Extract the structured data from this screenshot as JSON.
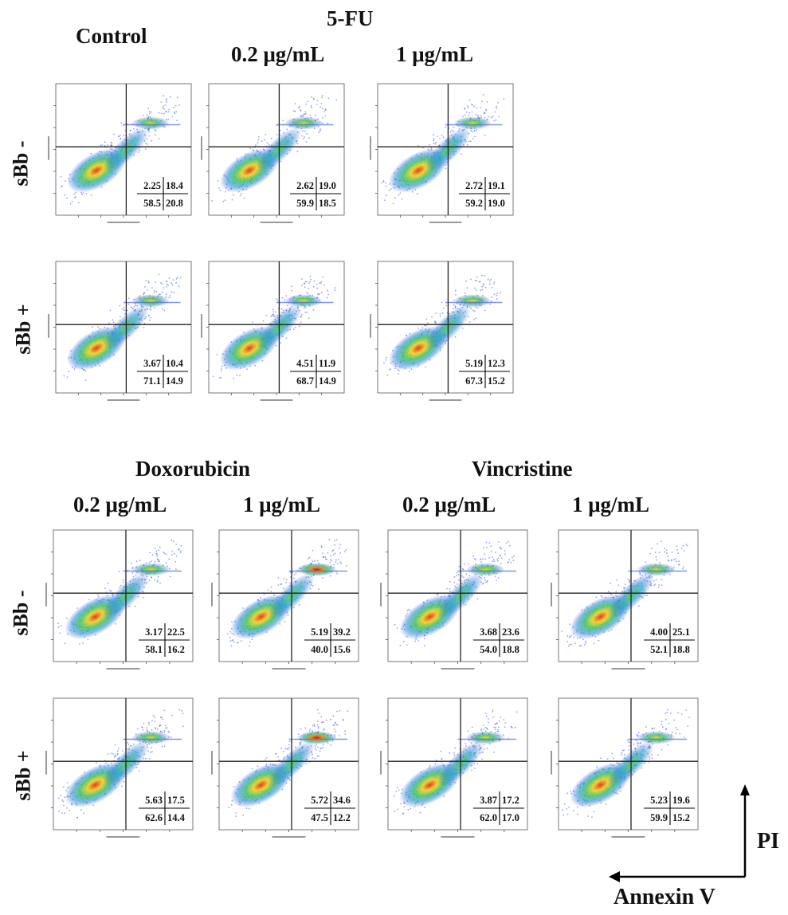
{
  "headers": {
    "top": {
      "control": "Control",
      "fu": "5-FU",
      "fu_dose1": "0.2 μg/mL",
      "fu_dose2": "1 μg/mL"
    },
    "bottom": {
      "dox": "Doxorubicin",
      "vin": "Vincristine",
      "dox_dose1": "0.2 μg/mL",
      "dox_dose2": "1 μg/mL",
      "vin_dose1": "0.2 μg/mL",
      "vin_dose2": "1 μg/mL"
    }
  },
  "row_labels": {
    "minus": "sBb -",
    "plus": "sBb +"
  },
  "axis_arrows": {
    "y": "PI",
    "x": "Annexin V"
  },
  "chart_data": [
    {
      "type": "scatter",
      "panel": "Control, sBb -",
      "quadrants": {
        "Q1": "2.25",
        "Q2": "18.4",
        "Q3": "58.5",
        "Q4": "20.8"
      }
    },
    {
      "type": "scatter",
      "panel": "5-FU 0.2 μg/mL, sBb -",
      "quadrants": {
        "Q1": "2.62",
        "Q2": "19.0",
        "Q3": "59.9",
        "Q4": "18.5"
      }
    },
    {
      "type": "scatter",
      "panel": "5-FU 1 μg/mL, sBb -",
      "quadrants": {
        "Q1": "2.72",
        "Q2": "19.1",
        "Q3": "59.2",
        "Q4": "19.0"
      }
    },
    {
      "type": "scatter",
      "panel": "Control, sBb +",
      "quadrants": {
        "Q1": "3.67",
        "Q2": "10.4",
        "Q3": "71.1",
        "Q4": "14.9"
      }
    },
    {
      "type": "scatter",
      "panel": "5-FU 0.2 μg/mL, sBb +",
      "quadrants": {
        "Q1": "4.51",
        "Q2": "11.9",
        "Q3": "68.7",
        "Q4": "14.9"
      }
    },
    {
      "type": "scatter",
      "panel": "5-FU 1 μg/mL, sBb +",
      "quadrants": {
        "Q1": "5.19",
        "Q2": "12.3",
        "Q3": "67.3",
        "Q4": "15.2"
      }
    },
    {
      "type": "scatter",
      "panel": "Doxorubicin 0.2 μg/mL, sBb -",
      "quadrants": {
        "Q1": "3.17",
        "Q2": "22.5",
        "Q3": "58.1",
        "Q4": "16.2"
      }
    },
    {
      "type": "scatter",
      "panel": "Doxorubicin 1 μg/mL, sBb -",
      "quadrants": {
        "Q1": "5.19",
        "Q2": "39.2",
        "Q3": "40.0",
        "Q4": "15.6"
      }
    },
    {
      "type": "scatter",
      "panel": "Vincristine 0.2 μg/mL, sBb -",
      "quadrants": {
        "Q1": "3.68",
        "Q2": "23.6",
        "Q3": "54.0",
        "Q4": "18.8"
      }
    },
    {
      "type": "scatter",
      "panel": "Vincristine 1 μg/mL, sBb -",
      "quadrants": {
        "Q1": "4.00",
        "Q2": "25.1",
        "Q3": "52.1",
        "Q4": "18.8"
      }
    },
    {
      "type": "scatter",
      "panel": "Doxorubicin 0.2 μg/mL, sBb +",
      "quadrants": {
        "Q1": "5.63",
        "Q2": "17.5",
        "Q3": "62.6",
        "Q4": "14.4"
      }
    },
    {
      "type": "scatter",
      "panel": "Doxorubicin 1 μg/mL, sBb +",
      "quadrants": {
        "Q1": "5.72",
        "Q2": "34.6",
        "Q3": "47.5",
        "Q4": "12.2"
      }
    },
    {
      "type": "scatter",
      "panel": "Vincristine 0.2 μg/mL, sBb +",
      "quadrants": {
        "Q1": "3.87",
        "Q2": "17.2",
        "Q3": "62.0",
        "Q4": "17.0"
      }
    },
    {
      "type": "scatter",
      "panel": "Vincristine 1 μg/mL, sBb +",
      "quadrants": {
        "Q1": "5.23",
        "Q2": "19.6",
        "Q3": "59.9",
        "Q4": "15.2"
      }
    }
  ]
}
